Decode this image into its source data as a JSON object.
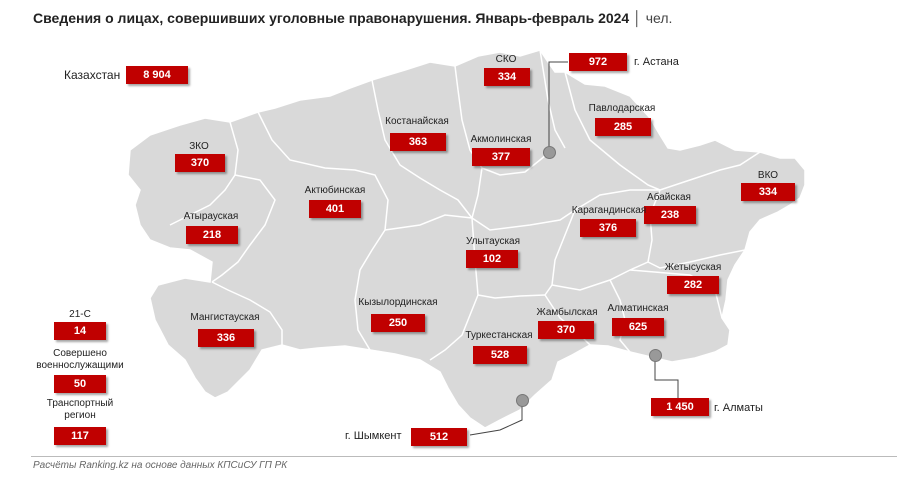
{
  "title": "Сведения о лицах, совершивших уголовные правонарушения. Январь-февраль 2024",
  "unit": "│ чел.",
  "kazakhstan": {
    "label": "Казахстан",
    "value": "8 904"
  },
  "regions": {
    "sko": {
      "label": "СКО",
      "value": "334"
    },
    "astana": {
      "label": "г. Астана",
      "value": "972"
    },
    "pavlodar": {
      "label": "Павлодарская",
      "value": "285"
    },
    "kostanay": {
      "label": "Костанайская",
      "value": "363"
    },
    "akmola": {
      "label": "Акмолинская",
      "value": "377"
    },
    "zko": {
      "label": "ЗКО",
      "value": "370"
    },
    "aktobe": {
      "label": "Актюбинская",
      "value": "401"
    },
    "vko": {
      "label": "ВКО",
      "value": "334"
    },
    "abai": {
      "label": "Абайская",
      "value": "238"
    },
    "atyrau": {
      "label": "Атырауская",
      "value": "218"
    },
    "karaganda": {
      "label": "Карагандинская",
      "value": "376"
    },
    "ulytau": {
      "label": "Улытауская",
      "value": "102"
    },
    "zhetysu": {
      "label": "Жетысуская",
      "value": "282"
    },
    "mangystau": {
      "label": "Мангистауская",
      "value": "336"
    },
    "kyzylorda": {
      "label": "Кызылординская",
      "value": "250"
    },
    "zhambyl": {
      "label": "Жамбылская",
      "value": "370"
    },
    "almaty_reg": {
      "label": "Алматинская",
      "value": "625"
    },
    "turkestan": {
      "label": "Туркестанская",
      "value": "528"
    },
    "shymkent": {
      "label": "г. Шымкент",
      "value": "512"
    },
    "almaty": {
      "label": "г. Алматы",
      "value": "1 450"
    }
  },
  "other": {
    "c21": {
      "label": "21-С",
      "value": "14"
    },
    "military": {
      "label_1": "Совершено",
      "label_2": "военнослужащими",
      "value": "50"
    },
    "transport": {
      "label_1": "Транспортный",
      "label_2": "регион",
      "value": "117"
    }
  },
  "footer": "Расчёты Ranking.kz на основе данных КПСиСУ ГП РК",
  "colors": {
    "accent": "#c00000",
    "map_fill": "#d9d9d9",
    "map_border": "#ffffff"
  }
}
